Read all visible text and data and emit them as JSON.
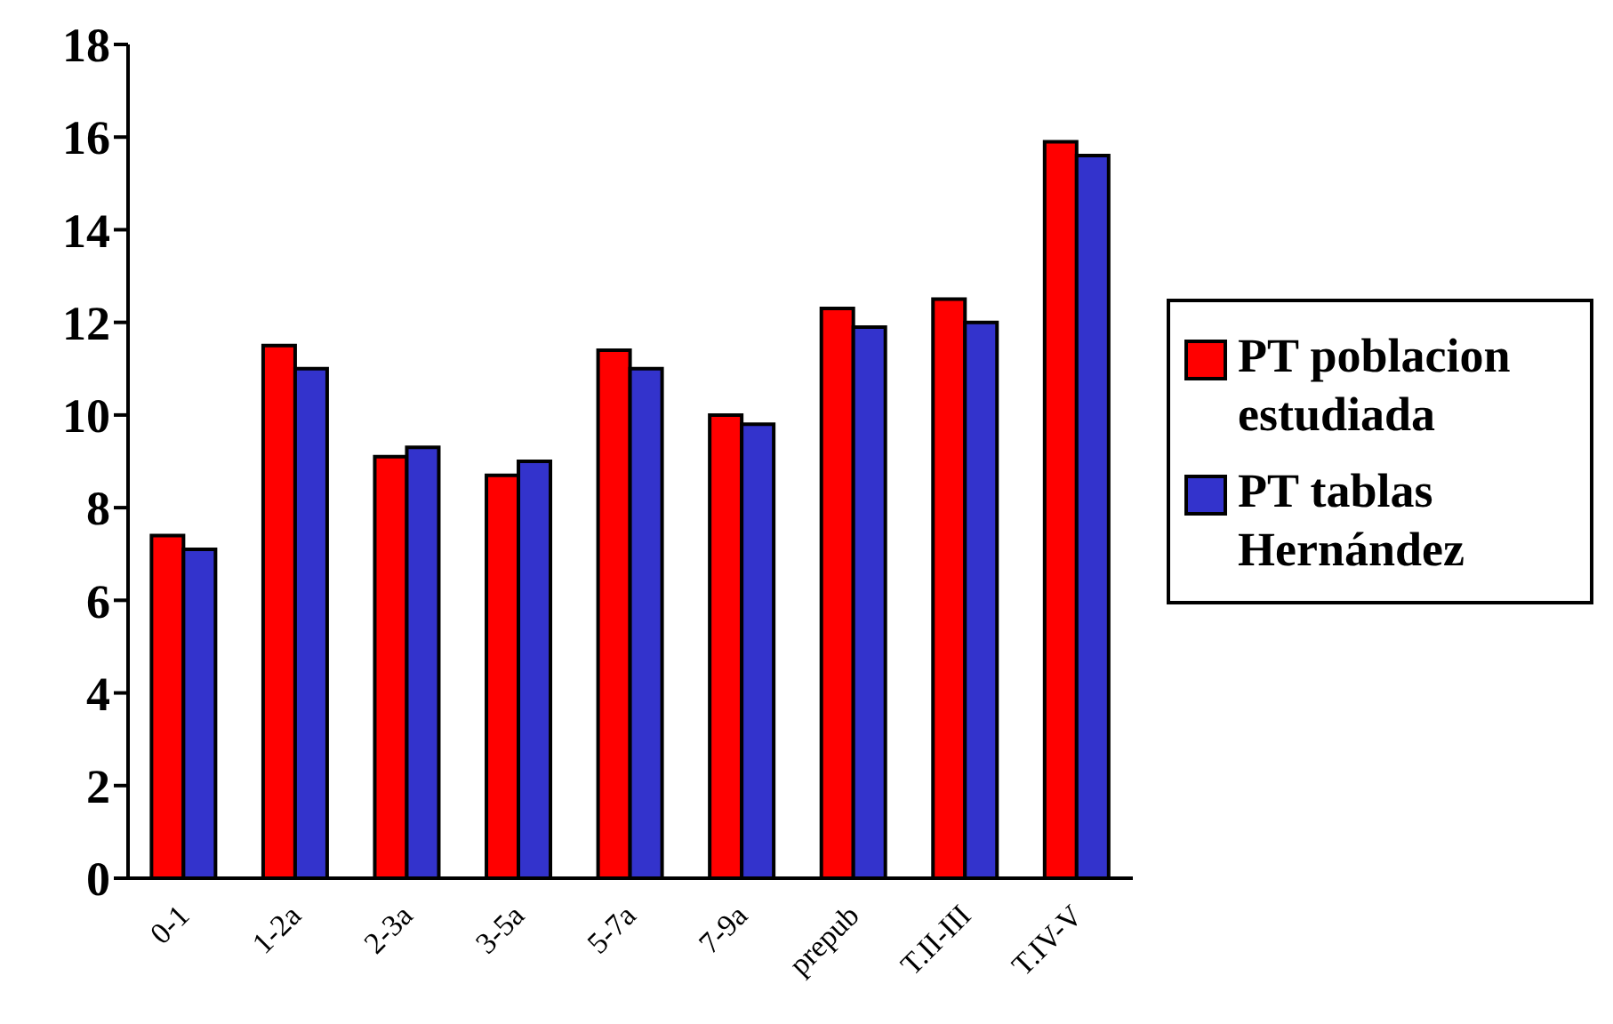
{
  "chart_data": {
    "type": "bar",
    "categories": [
      "0-1",
      "1-2a",
      "2-3a",
      "3-5a",
      "5-7a",
      "7-9a",
      "prepub",
      "T.II-III",
      "T.IV-V"
    ],
    "series": [
      {
        "name": "PT poblacion estudiada",
        "color": "#ff0000",
        "values": [
          7.4,
          11.5,
          9.1,
          8.7,
          11.4,
          10.0,
          12.3,
          12.5,
          15.9
        ]
      },
      {
        "name": "PT tablas Hernández",
        "color": "#3333cc",
        "values": [
          7.1,
          11.0,
          9.3,
          9.0,
          11.0,
          9.8,
          11.9,
          12.0,
          15.6
        ]
      }
    ],
    "ylim": [
      0,
      18
    ],
    "yticks": [
      0,
      2,
      4,
      6,
      8,
      10,
      12,
      14,
      16,
      18
    ],
    "grid": false,
    "legend": "right"
  }
}
